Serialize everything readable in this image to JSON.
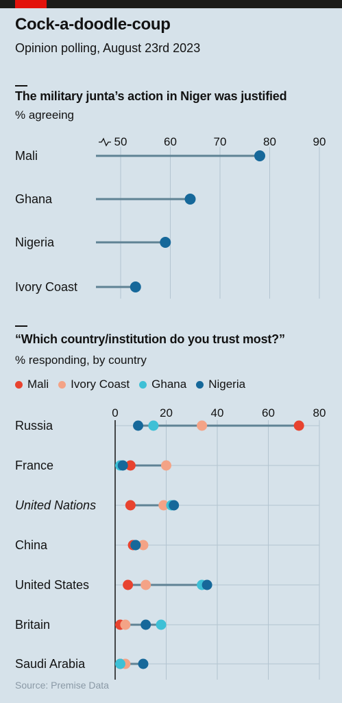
{
  "header": {
    "title": "Cock-a-doodle-coup",
    "subtitle": "Opinion polling, August 23rd 2023"
  },
  "colors": {
    "Mali": "#e8432f",
    "Ivory Coast": "#f4a386",
    "Ghana": "#3ec0d6",
    "Nigeria": "#16689a",
    "line": "#5f8294",
    "grid": "#b3c4d0"
  },
  "chart_data": [
    {
      "type": "lollipop",
      "title": "The military junta’s action in Niger was justified",
      "subtitle": "% agreeing",
      "axis_break": true,
      "xlim": [
        42,
        90
      ],
      "ticks": [
        "50",
        "60",
        "70",
        "80",
        "90"
      ],
      "categories": [
        "Mali",
        "Ghana",
        "Nigeria",
        "Ivory Coast"
      ],
      "values": [
        78,
        64,
        59,
        53
      ]
    },
    {
      "type": "dot",
      "title": "“Which country/institution do you trust most?”",
      "subtitle": "% responding, by country",
      "xlim": [
        0,
        80
      ],
      "ticks": [
        "0",
        "20",
        "40",
        "60",
        "80"
      ],
      "categories": [
        "Russia",
        "France",
        "United Nations",
        "China",
        "United States",
        "Britain",
        "Saudi Arabia"
      ],
      "italic_categories": [
        "United Nations"
      ],
      "series": [
        {
          "name": "Mali",
          "values": [
            72,
            6,
            6,
            7,
            5,
            2,
            2
          ]
        },
        {
          "name": "Ivory Coast",
          "values": [
            34,
            20,
            19,
            11,
            12,
            4,
            4
          ]
        },
        {
          "name": "Ghana",
          "values": [
            15,
            2,
            22,
            8,
            34,
            18,
            2
          ]
        },
        {
          "name": "Nigeria",
          "values": [
            9,
            3,
            23,
            8,
            36,
            12,
            11
          ]
        }
      ]
    }
  ],
  "source": "Source: Premise Data"
}
